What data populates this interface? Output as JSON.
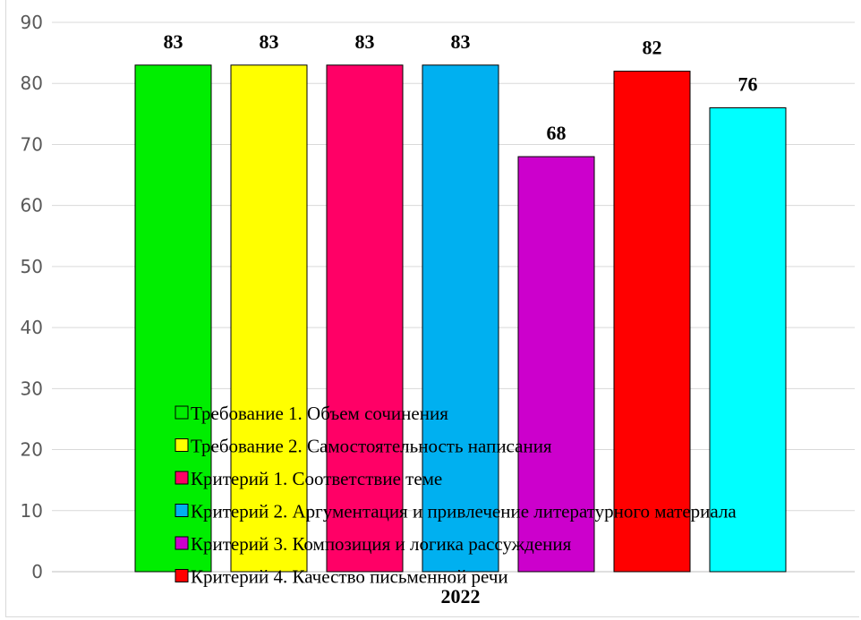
{
  "chart_data": {
    "type": "bar",
    "categories": [
      "2022"
    ],
    "series": [
      {
        "name": "Требование 1. Объем сочинения",
        "values": [
          83
        ],
        "color": "#00ee00"
      },
      {
        "name": "Требование 2. Самостоятельность написания",
        "values": [
          83
        ],
        "color": "#ffff00"
      },
      {
        "name": "Критерий 1. Соответствие теме",
        "values": [
          83
        ],
        "color": "#ff0066"
      },
      {
        "name": "Критерий 2. Аргументация и привлечение литературного материала",
        "values": [
          83
        ],
        "color": "#00b0f0"
      },
      {
        "name": "Критерий 3. Композиция и логика рассуждения",
        "values": [
          68
        ],
        "color": "#cc00cc"
      },
      {
        "name": "Критерий 4. Качество письменной речи",
        "values": [
          82
        ],
        "color": "#ff0000"
      },
      {
        "name": "",
        "values": [
          76
        ],
        "color": "#00ffff"
      }
    ],
    "ylim": [
      0,
      90
    ],
    "yticks": [
      0,
      10,
      20,
      30,
      40,
      50,
      60,
      70,
      80,
      90
    ],
    "grid": true,
    "legend_position": "bottom-center overlay",
    "data_labels": true
  }
}
